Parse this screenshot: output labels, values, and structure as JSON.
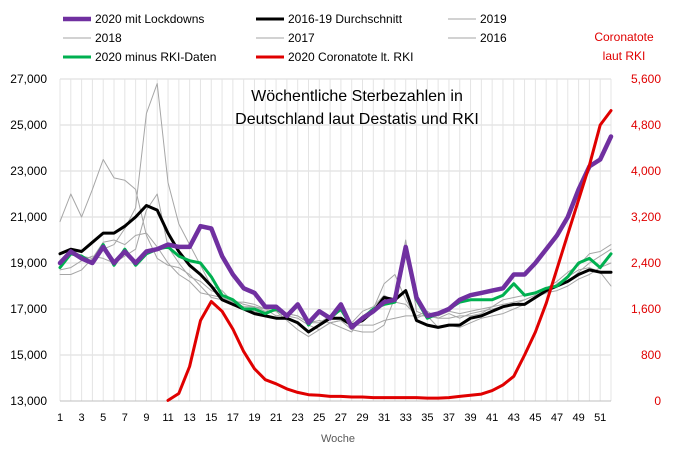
{
  "chart_data": {
    "type": "line",
    "title_lines": [
      "Wöchentliche Sterbezahlen in",
      "Deutschland laut Destatis und RKI"
    ],
    "xlabel": "Woche",
    "ylabel_right": [
      "Coronatote",
      "laut RKI"
    ],
    "x": [
      1,
      2,
      3,
      4,
      5,
      6,
      7,
      8,
      9,
      10,
      11,
      12,
      13,
      14,
      15,
      16,
      17,
      18,
      19,
      20,
      21,
      22,
      23,
      24,
      25,
      26,
      27,
      28,
      29,
      30,
      31,
      32,
      33,
      34,
      35,
      36,
      37,
      38,
      39,
      40,
      41,
      42,
      43,
      44,
      45,
      46,
      47,
      48,
      49,
      50,
      51,
      52
    ],
    "x_tick_labels": [
      "1",
      "3",
      "5",
      "7",
      "9",
      "11",
      "13",
      "15",
      "17",
      "19",
      "21",
      "23",
      "25",
      "27",
      "29",
      "31",
      "33",
      "35",
      "37",
      "39",
      "41",
      "43",
      "45",
      "47",
      "49",
      "51"
    ],
    "ylim": [
      13000,
      27000
    ],
    "y_tick_labels": [
      "13,000",
      "15,000",
      "17,000",
      "19,000",
      "21,000",
      "23,000",
      "25,000",
      "27,000"
    ],
    "y_ticks": [
      13000,
      15000,
      17000,
      19000,
      21000,
      23000,
      25000,
      27000
    ],
    "y2lim": [
      0,
      5600
    ],
    "y2_tick_labels": [
      "0",
      "800",
      "1,600",
      "2,400",
      "3,200",
      "4,000",
      "4,800",
      "5,600"
    ],
    "y2_ticks": [
      0,
      800,
      1600,
      2400,
      3200,
      4000,
      4800,
      5600
    ],
    "grid": true,
    "legend": [
      {
        "label": "2020 mit Lockdowns",
        "color": "#7030a0",
        "width": 4.5
      },
      {
        "label": "2016-19 Durchschnitt",
        "color": "#000000",
        "width": 3
      },
      {
        "label": "2019",
        "color": "#a6a6a6",
        "width": 1
      },
      {
        "label": "2018",
        "color": "#a6a6a6",
        "width": 1
      },
      {
        "label": "2017",
        "color": "#a6a6a6",
        "width": 1
      },
      {
        "label": "2016",
        "color": "#a6a6a6",
        "width": 1
      },
      {
        "label": "2020 minus RKI-Daten",
        "color": "#00b050",
        "width": 3
      },
      {
        "label": "2020 Coronatote lt. RKI",
        "color": "#e00000",
        "width": 3
      }
    ],
    "series": [
      {
        "name": "2019",
        "color": "#a6a6a6",
        "width": 1,
        "axis": "left",
        "values": [
          18700,
          18800,
          19100,
          19300,
          19200,
          19000,
          19300,
          19600,
          21300,
          22000,
          19700,
          19000,
          18400,
          18200,
          17800,
          17600,
          17400,
          17200,
          17100,
          16900,
          16900,
          16800,
          16700,
          16400,
          16400,
          16700,
          16900,
          16400,
          16900,
          17100,
          17600,
          17300,
          17200,
          16700,
          16900,
          16600,
          16800,
          16600,
          16800,
          16900,
          17000,
          17100,
          17200,
          17400,
          17600,
          17700,
          17800,
          18000,
          18300,
          18500,
          18800,
          19000
        ]
      },
      {
        "name": "2018",
        "color": "#a6a6a6",
        "width": 1,
        "axis": "left",
        "values": [
          18500,
          18500,
          18700,
          19200,
          19600,
          19800,
          20500,
          21400,
          25500,
          26800,
          22500,
          20700,
          19800,
          18900,
          18000,
          17800,
          17300,
          17100,
          17100,
          17000,
          16700,
          16800,
          16700,
          16400,
          16500,
          16400,
          16200,
          16000,
          16700,
          17000,
          18100,
          18500,
          17400,
          16600,
          16800,
          16700,
          16900,
          16800,
          16900,
          17000,
          17100,
          17200,
          17300,
          17400,
          17600,
          17800,
          18000,
          18200,
          18600,
          19000,
          19300,
          19600
        ]
      },
      {
        "name": "2017",
        "color": "#a6a6a6",
        "width": 1,
        "axis": "left",
        "values": [
          20800,
          22000,
          21000,
          22200,
          23500,
          22700,
          22600,
          22200,
          20200,
          19200,
          18900,
          18800,
          18500,
          18000,
          17500,
          17400,
          17200,
          17000,
          16900,
          16700,
          16600,
          16700,
          16600,
          16300,
          16100,
          16400,
          16500,
          16300,
          16300,
          16300,
          16500,
          16600,
          16700,
          16700,
          16700,
          16600,
          16600,
          16700,
          16700,
          16800,
          17100,
          17400,
          17500,
          17600,
          17700,
          17900,
          18200,
          18600,
          18900,
          19400,
          19500,
          19800
        ]
      },
      {
        "name": "2016",
        "color": "#a6a6a6",
        "width": 1,
        "axis": "left",
        "values": [
          18800,
          19600,
          19300,
          19200,
          19900,
          20000,
          19800,
          20200,
          20300,
          19700,
          19000,
          18500,
          18200,
          17700,
          17600,
          17500,
          17300,
          17300,
          17200,
          17000,
          16900,
          16500,
          16100,
          15800,
          16100,
          16400,
          16500,
          16100,
          16000,
          16000,
          16300,
          17500,
          20000,
          16900,
          16700,
          16200,
          16300,
          16200,
          16400,
          16600,
          16700,
          16800,
          17000,
          17200,
          17500,
          17700,
          18100,
          18400,
          18700,
          18800,
          18600,
          18000
        ]
      },
      {
        "name": "2016-19 Durchschnitt",
        "color": "#000000",
        "width": 3,
        "axis": "left",
        "values": [
          19400,
          19600,
          19500,
          19900,
          20300,
          20300,
          20600,
          21000,
          21500,
          21300,
          20300,
          19500,
          18900,
          18500,
          18000,
          17400,
          17200,
          17000,
          16800,
          16700,
          16600,
          16600,
          16400,
          16000,
          16300,
          16600,
          16600,
          16300,
          16500,
          16900,
          17500,
          17400,
          17800,
          16500,
          16300,
          16200,
          16300,
          16300,
          16600,
          16700,
          16900,
          17100,
          17200,
          17200,
          17500,
          17800,
          18000,
          18200,
          18500,
          18700,
          18600,
          18600
        ]
      },
      {
        "name": "2020 minus RKI-Daten",
        "color": "#00b050",
        "width": 3,
        "axis": "left",
        "values": [
          18800,
          19400,
          19300,
          19000,
          19800,
          18900,
          19600,
          18900,
          19400,
          19600,
          19700,
          19300,
          19100,
          19000,
          18400,
          17600,
          17400,
          17000,
          17000,
          16800,
          17000,
          16700,
          17200,
          16300,
          16900,
          16600,
          17000,
          16200,
          16600,
          17000,
          17200,
          17300,
          19600,
          17400,
          16600,
          16800,
          17000,
          17300,
          17400,
          17400,
          17400,
          17600,
          18100,
          17600,
          17700,
          17900,
          18000,
          18400,
          19000,
          19200,
          18800,
          19400
        ]
      },
      {
        "name": "2020 mit Lockdowns",
        "color": "#7030a0",
        "width": 4.5,
        "axis": "left",
        "values": [
          19000,
          19500,
          19200,
          19000,
          19700,
          19000,
          19500,
          19000,
          19500,
          19600,
          19800,
          19700,
          19700,
          20600,
          20500,
          19300,
          18500,
          17900,
          17700,
          17100,
          17100,
          16700,
          17200,
          16400,
          16900,
          16600,
          17200,
          16200,
          16600,
          16900,
          17300,
          17400,
          19700,
          17500,
          16700,
          16800,
          17000,
          17400,
          17600,
          17700,
          17800,
          17900,
          18500,
          18500,
          19000,
          19600,
          20200,
          21000,
          22200,
          23200,
          23500,
          24500
        ]
      },
      {
        "name": "2020 Coronatote lt. RKI",
        "color": "#e00000",
        "width": 3,
        "axis": "right",
        "values": [
          null,
          null,
          null,
          null,
          null,
          null,
          null,
          null,
          null,
          null,
          10,
          130,
          600,
          1400,
          1730,
          1560,
          1250,
          860,
          560,
          370,
          300,
          210,
          150,
          110,
          100,
          80,
          80,
          70,
          70,
          60,
          60,
          60,
          60,
          60,
          50,
          50,
          60,
          80,
          100,
          120,
          180,
          280,
          430,
          800,
          1200,
          1700,
          2300,
          2900,
          3500,
          4100,
          4800,
          5050
        ]
      }
    ]
  }
}
